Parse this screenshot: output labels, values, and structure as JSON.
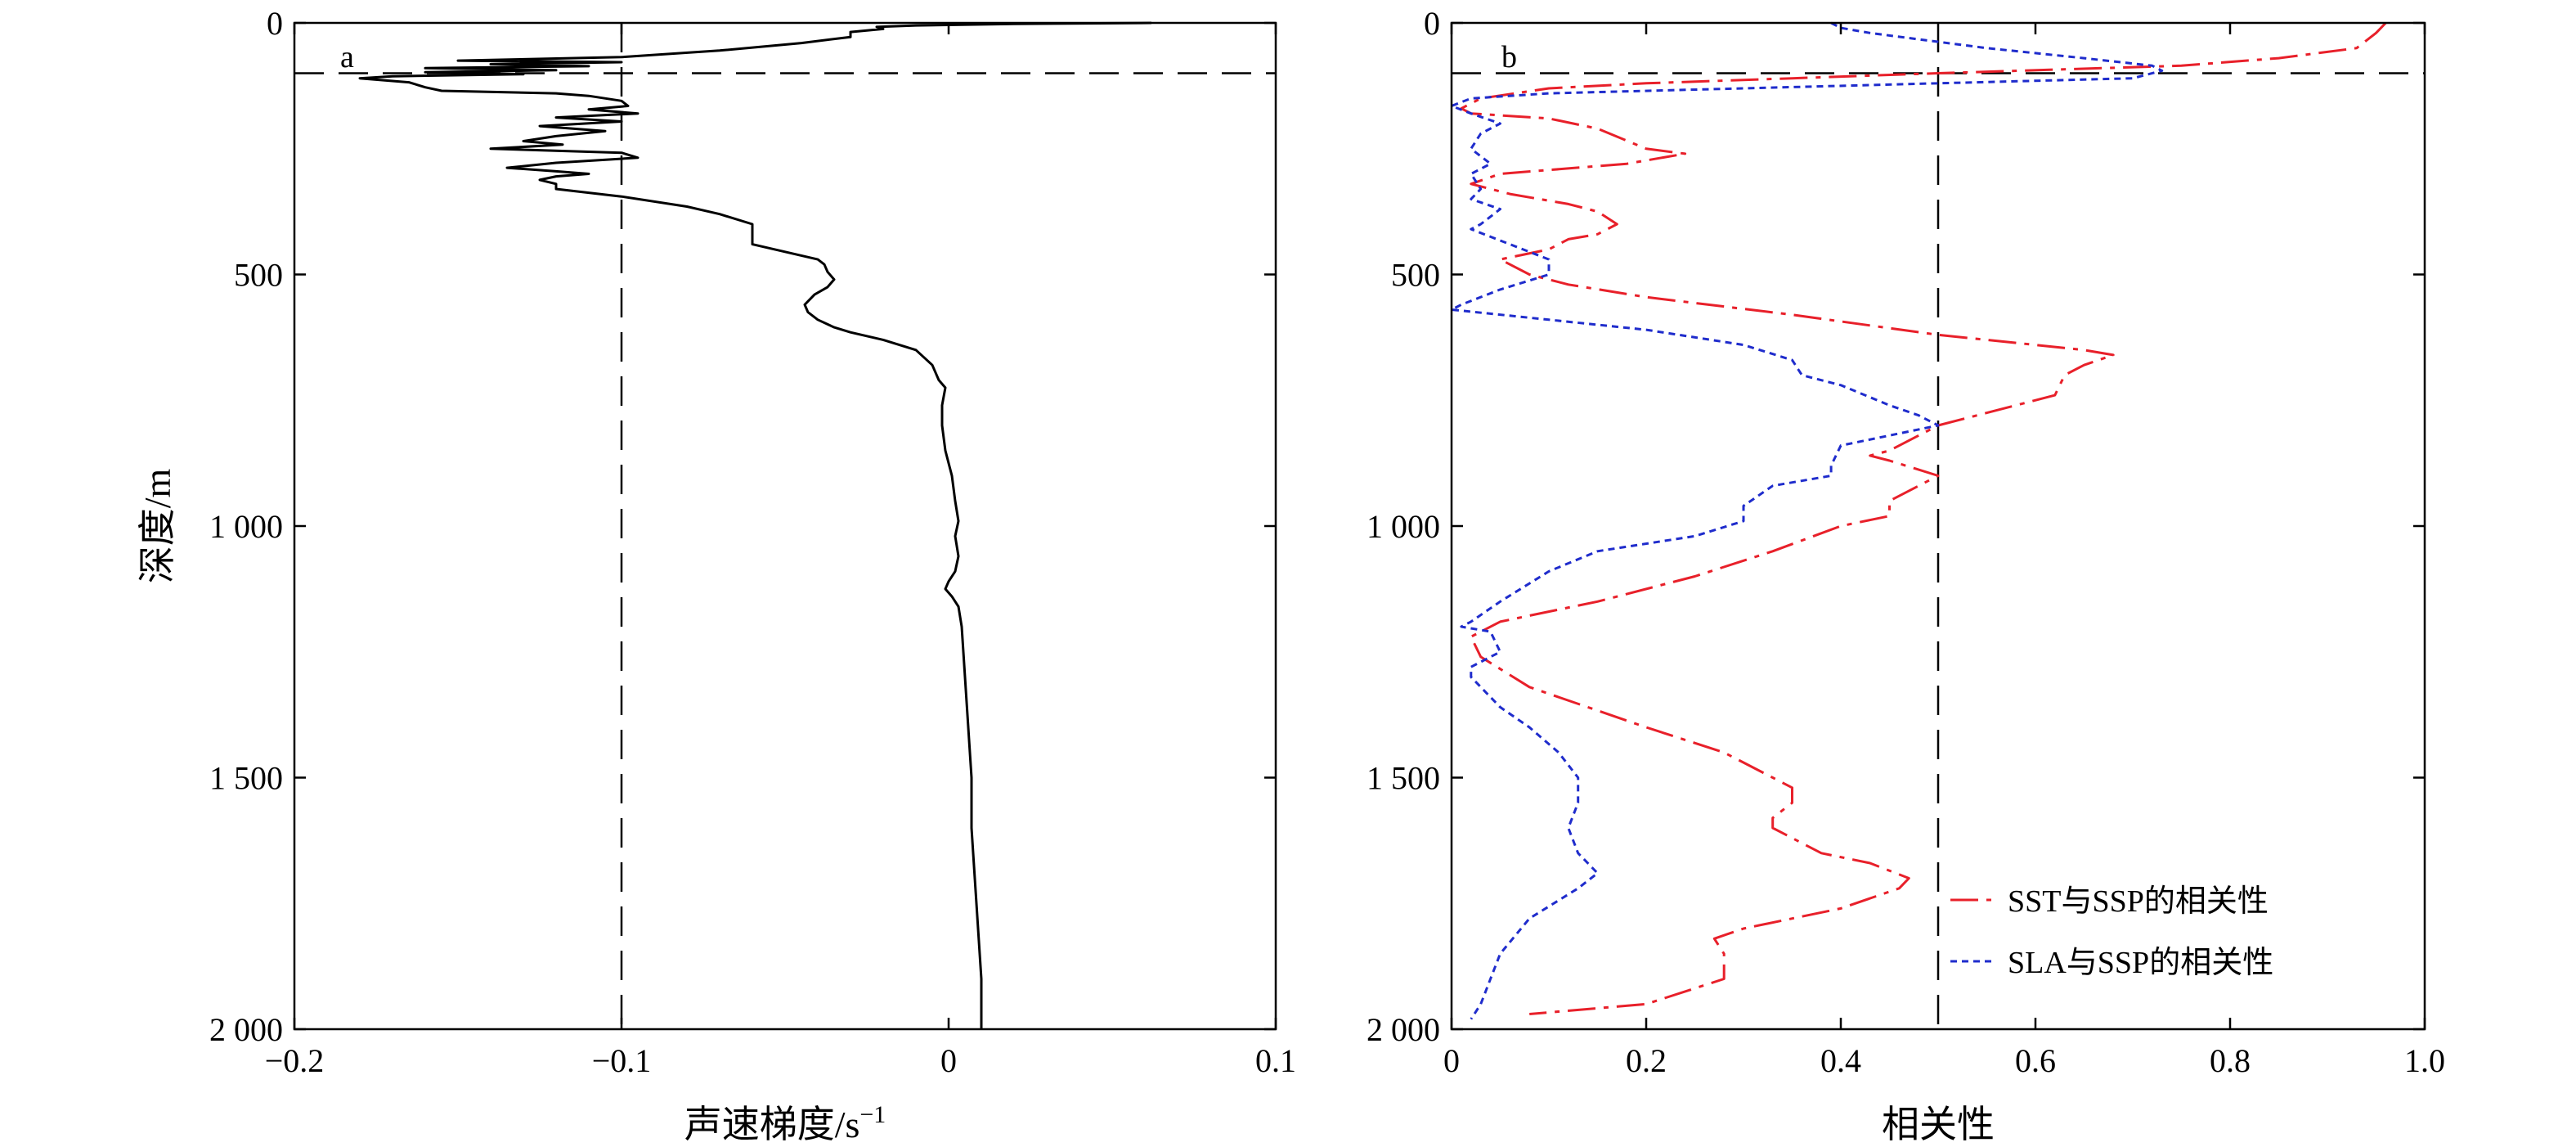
{
  "chart_data": [
    {
      "type": "line",
      "panel_label": "a",
      "xlabel": "声速梯度/s",
      "xlabel_sup": "−1",
      "ylabel": "深度/m",
      "xlim": [
        -0.2,
        0.1
      ],
      "ylim": [
        0,
        2000
      ],
      "y_reversed": true,
      "xticks": [
        -0.2,
        -0.1,
        0,
        0.1
      ],
      "xtick_labels": [
        "−0.2",
        "−0.1",
        "0",
        "0.1"
      ],
      "yticks": [
        0,
        500,
        1000,
        1500,
        2000
      ],
      "ytick_labels": [
        "0",
        "500",
        "1 000",
        "1 500",
        "2 000"
      ],
      "reference_lines": {
        "horizontal_depth": 100,
        "vertical_x": -0.1
      },
      "series": [
        {
          "color": "#000000",
          "style": "solid",
          "points": [
            [
              0.062,
              0
            ],
            [
              0.02,
              2
            ],
            [
              -0.01,
              5
            ],
            [
              -0.022,
              8
            ],
            [
              -0.02,
              12
            ],
            [
              -0.03,
              18
            ],
            [
              -0.03,
              28
            ],
            [
              -0.045,
              40
            ],
            [
              -0.07,
              55
            ],
            [
              -0.1,
              68
            ],
            [
              -0.15,
              75
            ],
            [
              -0.1,
              78
            ],
            [
              -0.14,
              82
            ],
            [
              -0.11,
              86
            ],
            [
              -0.16,
              90
            ],
            [
              -0.12,
              94
            ],
            [
              -0.16,
              98
            ],
            [
              -0.13,
              102
            ],
            [
              -0.17,
              106
            ],
            [
              -0.18,
              110
            ],
            [
              -0.165,
              118
            ],
            [
              -0.16,
              128
            ],
            [
              -0.155,
              135
            ],
            [
              -0.12,
              140
            ],
            [
              -0.11,
              145
            ],
            [
              -0.1,
              155
            ],
            [
              -0.098,
              165
            ],
            [
              -0.11,
              172
            ],
            [
              -0.095,
              180
            ],
            [
              -0.12,
              188
            ],
            [
              -0.1,
              196
            ],
            [
              -0.125,
              205
            ],
            [
              -0.105,
              215
            ],
            [
              -0.12,
              225
            ],
            [
              -0.13,
              235
            ],
            [
              -0.118,
              242
            ],
            [
              -0.14,
              250
            ],
            [
              -0.1,
              258
            ],
            [
              -0.095,
              268
            ],
            [
              -0.12,
              278
            ],
            [
              -0.135,
              288
            ],
            [
              -0.12,
              295
            ],
            [
              -0.11,
              300
            ],
            [
              -0.12,
              305
            ],
            [
              -0.125,
              312
            ],
            [
              -0.12,
              320
            ],
            [
              -0.12,
              330
            ],
            [
              -0.1,
              345
            ],
            [
              -0.08,
              365
            ],
            [
              -0.07,
              380
            ],
            [
              -0.06,
              400
            ],
            [
              -0.06,
              420
            ],
            [
              -0.06,
              440
            ],
            [
              -0.05,
              455
            ],
            [
              -0.04,
              470
            ],
            [
              -0.038,
              480
            ],
            [
              -0.037,
              495
            ],
            [
              -0.035,
              510
            ],
            [
              -0.037,
              525
            ],
            [
              -0.041,
              540
            ],
            [
              -0.044,
              560
            ],
            [
              -0.043,
              575
            ],
            [
              -0.04,
              590
            ],
            [
              -0.035,
              605
            ],
            [
              -0.03,
              615
            ],
            [
              -0.02,
              630
            ],
            [
              -0.01,
              650
            ],
            [
              -0.005,
              680
            ],
            [
              -0.003,
              710
            ],
            [
              -0.001,
              725
            ],
            [
              -0.002,
              760
            ],
            [
              -0.002,
              800
            ],
            [
              -0.001,
              850
            ],
            [
              0.001,
              900
            ],
            [
              0.002,
              950
            ],
            [
              0.003,
              990
            ],
            [
              0.002,
              1020
            ],
            [
              0.003,
              1060
            ],
            [
              0.002,
              1090
            ],
            [
              0.0,
              1110
            ],
            [
              -0.001,
              1125
            ],
            [
              0.001,
              1140
            ],
            [
              0.003,
              1160
            ],
            [
              0.004,
              1200
            ],
            [
              0.005,
              1300
            ],
            [
              0.006,
              1400
            ],
            [
              0.007,
              1500
            ],
            [
              0.007,
              1600
            ],
            [
              0.008,
              1700
            ],
            [
              0.009,
              1800
            ],
            [
              0.01,
              1900
            ],
            [
              0.01,
              2000
            ]
          ]
        }
      ]
    },
    {
      "type": "line",
      "panel_label": "b",
      "xlabel": "相关性",
      "xlim": [
        0,
        1.0
      ],
      "ylim": [
        0,
        2000
      ],
      "y_reversed": true,
      "xticks": [
        0,
        0.2,
        0.4,
        0.6,
        0.8,
        1.0
      ],
      "xtick_labels": [
        "0",
        "0.2",
        "0.4",
        "0.6",
        "0.8",
        "1.0"
      ],
      "yticks": [
        0,
        500,
        1000,
        1500,
        2000
      ],
      "ytick_labels": [
        "0",
        "500",
        "1 000",
        "1 500",
        "2 000"
      ],
      "reference_lines": {
        "horizontal_depth": 100,
        "vertical_x": 0.5
      },
      "legend_position": "bottom-right",
      "series": [
        {
          "name": "SST与SSP的相关性",
          "color": "#e8202a",
          "style": "dashdot",
          "points": [
            [
              0.96,
              0
            ],
            [
              0.95,
              20
            ],
            [
              0.93,
              50
            ],
            [
              0.85,
              70
            ],
            [
              0.75,
              85
            ],
            [
              0.5,
              100
            ],
            [
              0.35,
              110
            ],
            [
              0.2,
              120
            ],
            [
              0.1,
              130
            ],
            [
              0.03,
              150
            ],
            [
              0.01,
              170
            ],
            [
              0.02,
              180
            ],
            [
              0.1,
              190
            ],
            [
              0.15,
              210
            ],
            [
              0.2,
              250
            ],
            [
              0.24,
              260
            ],
            [
              0.18,
              280
            ],
            [
              0.05,
              300
            ],
            [
              0.02,
              320
            ],
            [
              0.06,
              340
            ],
            [
              0.12,
              360
            ],
            [
              0.15,
              375
            ],
            [
              0.17,
              400
            ],
            [
              0.15,
              420
            ],
            [
              0.12,
              430
            ],
            [
              0.1,
              450
            ],
            [
              0.05,
              470
            ],
            [
              0.08,
              500
            ],
            [
              0.12,
              520
            ],
            [
              0.2,
              545
            ],
            [
              0.35,
              580
            ],
            [
              0.5,
              620
            ],
            [
              0.6,
              640
            ],
            [
              0.65,
              650
            ],
            [
              0.68,
              660
            ],
            [
              0.65,
              680
            ],
            [
              0.63,
              700
            ],
            [
              0.62,
              740
            ],
            [
              0.58,
              760
            ],
            [
              0.5,
              800
            ],
            [
              0.45,
              850
            ],
            [
              0.43,
              860
            ],
            [
              0.45,
              870
            ],
            [
              0.5,
              900
            ],
            [
              0.48,
              920
            ],
            [
              0.45,
              950
            ],
            [
              0.45,
              980
            ],
            [
              0.4,
              1000
            ],
            [
              0.33,
              1050
            ],
            [
              0.25,
              1100
            ],
            [
              0.15,
              1150
            ],
            [
              0.05,
              1190
            ],
            [
              0.02,
              1220
            ],
            [
              0.03,
              1260
            ],
            [
              0.08,
              1320
            ],
            [
              0.2,
              1400
            ],
            [
              0.28,
              1450
            ],
            [
              0.33,
              1500
            ],
            [
              0.35,
              1520
            ],
            [
              0.35,
              1550
            ],
            [
              0.33,
              1580
            ],
            [
              0.33,
              1600
            ],
            [
              0.38,
              1650
            ],
            [
              0.43,
              1670
            ],
            [
              0.47,
              1700
            ],
            [
              0.46,
              1720
            ],
            [
              0.4,
              1760
            ],
            [
              0.3,
              1800
            ],
            [
              0.27,
              1820
            ],
            [
              0.28,
              1850
            ],
            [
              0.28,
              1900
            ],
            [
              0.2,
              1950
            ],
            [
              0.08,
              1970
            ]
          ]
        },
        {
          "name": "SLA与SSP的相关性",
          "color": "#1f2ccc",
          "style": "dotted",
          "points": [
            [
              0.39,
              0
            ],
            [
              0.4,
              10
            ],
            [
              0.43,
              20
            ],
            [
              0.47,
              30
            ],
            [
              0.55,
              50
            ],
            [
              0.65,
              70
            ],
            [
              0.72,
              85
            ],
            [
              0.73,
              95
            ],
            [
              0.7,
              110
            ],
            [
              0.5,
              120
            ],
            [
              0.3,
              130
            ],
            [
              0.1,
              140
            ],
            [
              0.02,
              150
            ],
            [
              0.0,
              165
            ],
            [
              0.02,
              180
            ],
            [
              0.05,
              200
            ],
            [
              0.03,
              220
            ],
            [
              0.02,
              250
            ],
            [
              0.04,
              280
            ],
            [
              0.02,
              300
            ],
            [
              0.03,
              330
            ],
            [
              0.02,
              350
            ],
            [
              0.05,
              370
            ],
            [
              0.03,
              400
            ],
            [
              0.02,
              410
            ],
            [
              0.06,
              440
            ],
            [
              0.1,
              470
            ],
            [
              0.1,
              500
            ],
            [
              0.05,
              530
            ],
            [
              0.01,
              560
            ],
            [
              0.0,
              570
            ],
            [
              0.1,
              590
            ],
            [
              0.2,
              610
            ],
            [
              0.3,
              640
            ],
            [
              0.35,
              670
            ],
            [
              0.36,
              700
            ],
            [
              0.4,
              720
            ],
            [
              0.45,
              760
            ],
            [
              0.48,
              780
            ],
            [
              0.5,
              800
            ],
            [
              0.45,
              820
            ],
            [
              0.4,
              840
            ],
            [
              0.39,
              880
            ],
            [
              0.39,
              900
            ],
            [
              0.33,
              920
            ],
            [
              0.3,
              960
            ],
            [
              0.3,
              990
            ],
            [
              0.25,
              1020
            ],
            [
              0.15,
              1050
            ],
            [
              0.1,
              1090
            ],
            [
              0.05,
              1150
            ],
            [
              0.02,
              1190
            ],
            [
              0.01,
              1200
            ],
            [
              0.04,
              1210
            ],
            [
              0.05,
              1250
            ],
            [
              0.04,
              1260
            ],
            [
              0.02,
              1280
            ],
            [
              0.02,
              1300
            ],
            [
              0.05,
              1360
            ],
            [
              0.08,
              1400
            ],
            [
              0.11,
              1450
            ],
            [
              0.13,
              1500
            ],
            [
              0.13,
              1550
            ],
            [
              0.12,
              1600
            ],
            [
              0.13,
              1650
            ],
            [
              0.15,
              1690
            ],
            [
              0.13,
              1720
            ],
            [
              0.08,
              1780
            ],
            [
              0.05,
              1850
            ],
            [
              0.04,
              1900
            ],
            [
              0.03,
              1950
            ],
            [
              0.02,
              1980
            ]
          ]
        }
      ]
    }
  ]
}
